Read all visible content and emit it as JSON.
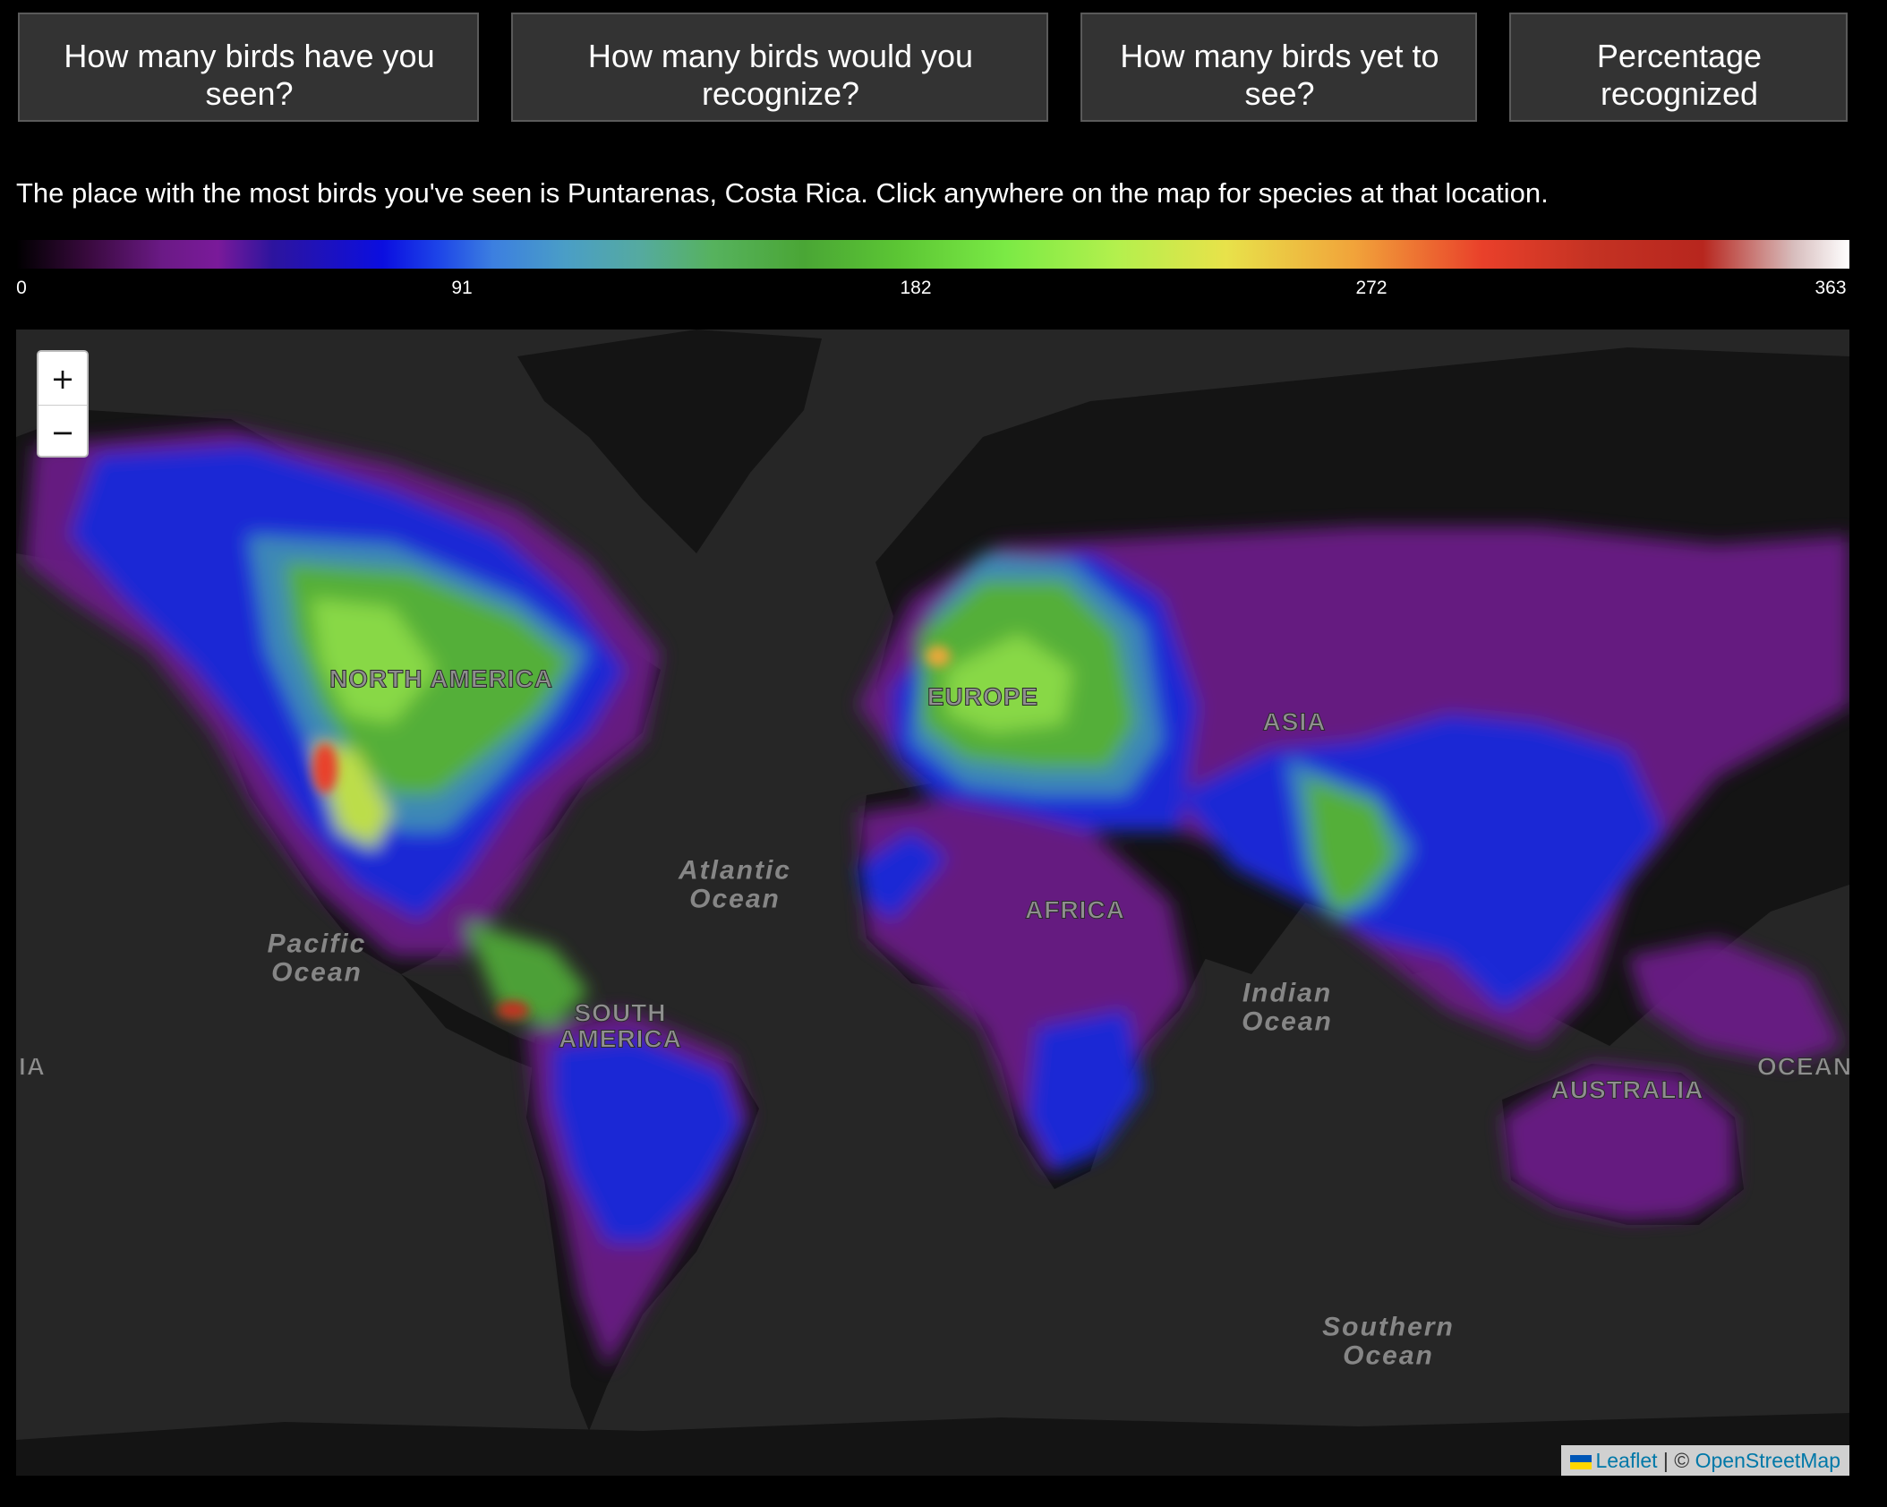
{
  "questions": [
    {
      "label": "How many birds have you seen?"
    },
    {
      "label": "How many birds would you recognize?"
    },
    {
      "label": "How many birds yet to see?"
    },
    {
      "label": "Percentage recognized"
    }
  ],
  "info_text": "The place with the most birds you've seen is Puntarenas, Costa Rica. Click anywhere on the map for species at that location.",
  "legend": {
    "min": 0,
    "max": 363,
    "ticks": [
      "0",
      "91",
      "182",
      "272",
      "363"
    ],
    "scale_colors": [
      "#000000",
      "#7a1a9a",
      "#0b0ee0",
      "#4a9ec6",
      "#4aa635",
      "#7bea45",
      "#e8e24a",
      "#e9402a",
      "#b7261e",
      "#ffffff"
    ]
  },
  "map": {
    "labels": {
      "north_america": "NORTH AMERICA",
      "europe": "EUROPE",
      "asia": "ASIA",
      "africa": "AFRICA",
      "south_america": "SOUTH AMERICA",
      "australia": "AUSTRALIA",
      "atlantic": "Atlantic Ocean",
      "pacific": "Pacific Ocean",
      "indian": "Indian Ocean",
      "southern": "Southern Ocean",
      "edge_left": "IA",
      "edge_right": "OCEAN"
    },
    "zoom_in": "+",
    "zoom_out": "−",
    "attribution": {
      "leaflet": "Leaflet",
      "separator": " | © ",
      "osm": "OpenStreetMap"
    },
    "colors": {
      "ocean": "#262626",
      "land": "#141414"
    }
  }
}
